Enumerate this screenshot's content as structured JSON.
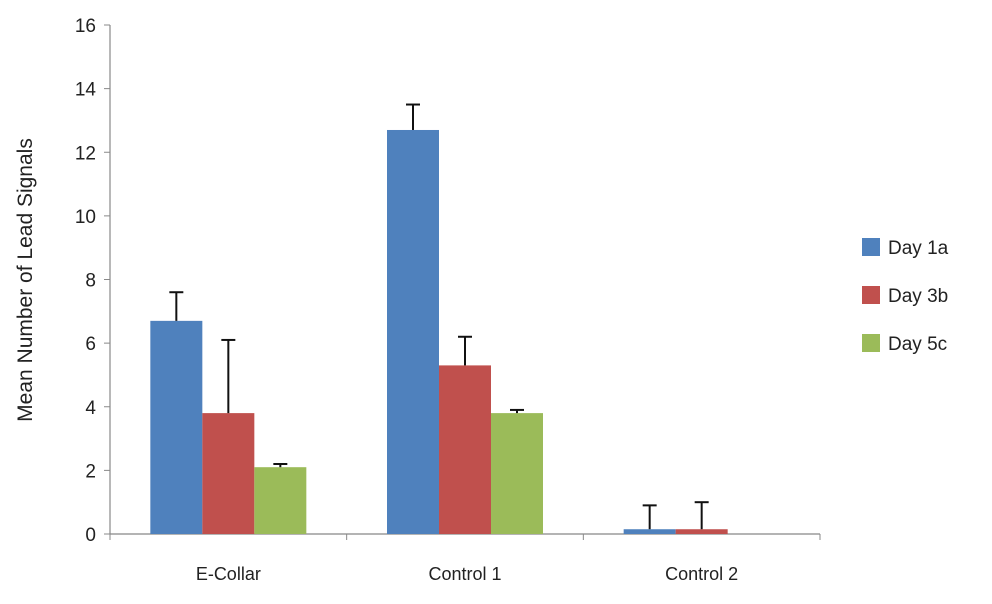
{
  "chart_data": {
    "type": "bar",
    "title": "",
    "xlabel": "",
    "ylabel": "Mean Number of Lead Signals",
    "ylim": [
      0,
      16
    ],
    "yticks": [
      0,
      2,
      4,
      6,
      8,
      10,
      12,
      14,
      16
    ],
    "grid": false,
    "legend_position": "right",
    "categories": [
      "E-Collar",
      "Control 1",
      "Control 2"
    ],
    "series": [
      {
        "name": "Day 1a",
        "color": "#4f81bd",
        "values": [
          6.7,
          12.7,
          0.15
        ],
        "error_upper": [
          7.6,
          13.5,
          0.9
        ]
      },
      {
        "name": "Day 3b",
        "color": "#c0504d",
        "values": [
          3.8,
          5.3,
          0.15
        ],
        "error_upper": [
          6.1,
          6.2,
          1.0
        ]
      },
      {
        "name": "Day 5c",
        "color": "#9bbb59",
        "values": [
          2.1,
          3.8,
          0
        ],
        "error_upper": [
          2.2,
          3.9,
          null
        ]
      }
    ]
  }
}
